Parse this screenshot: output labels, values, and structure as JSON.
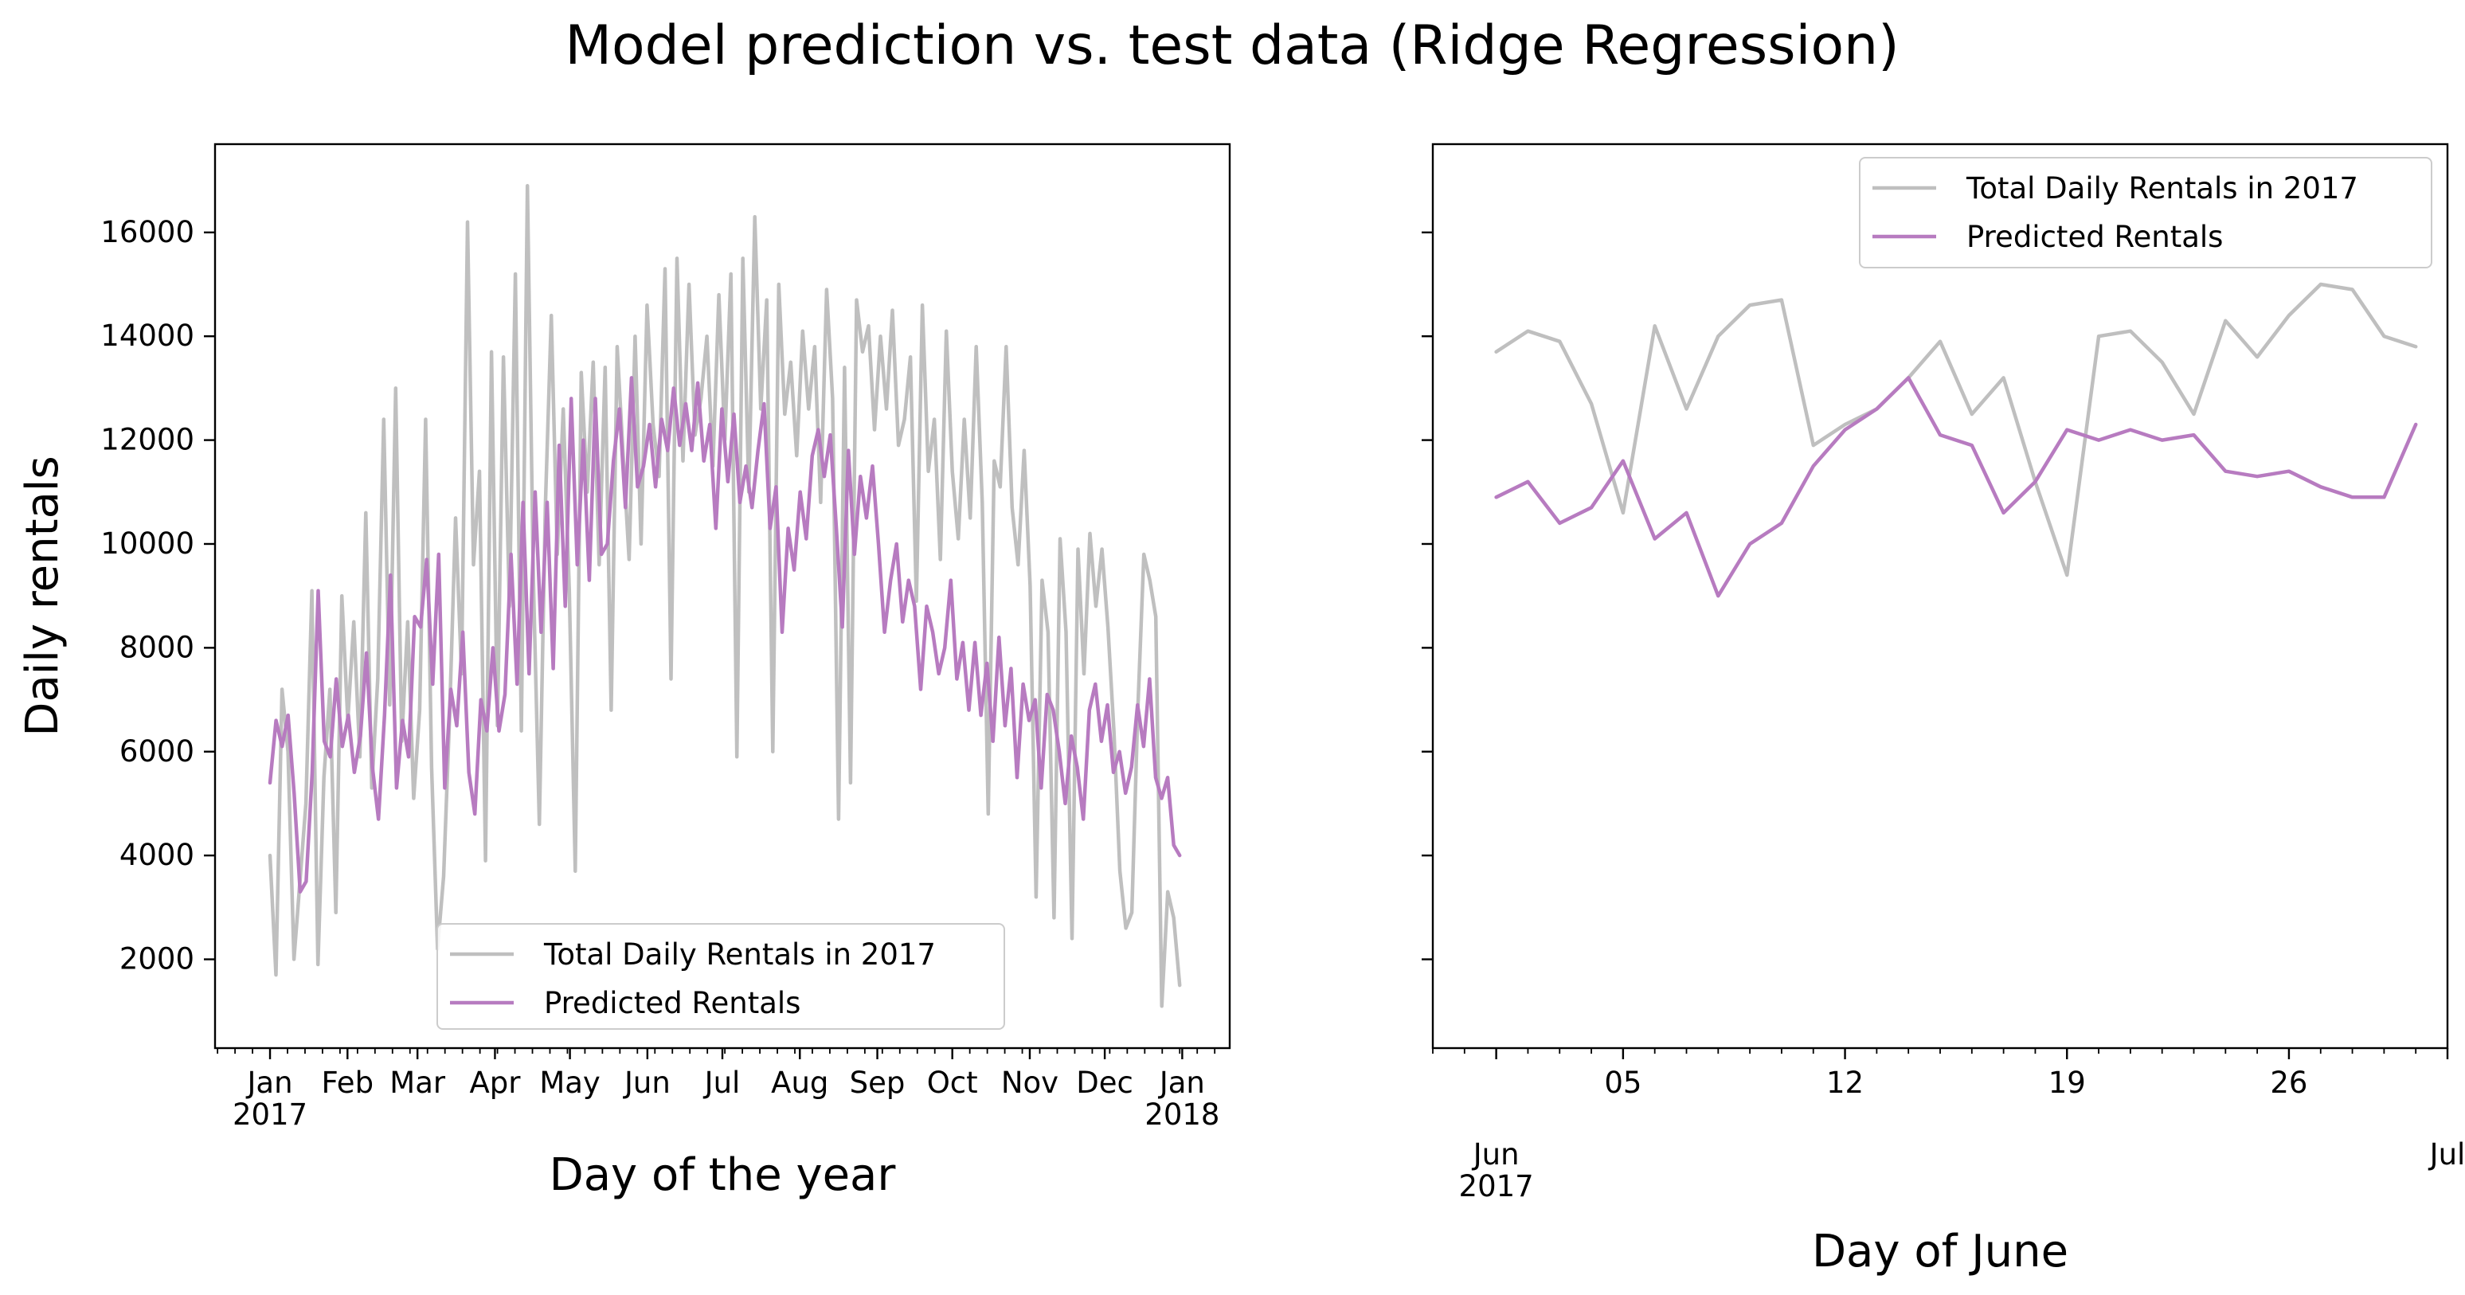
{
  "figure": {
    "suptitle": "Model prediction vs. test data (Ridge Regression)"
  },
  "colors": {
    "actual": "#bfbfbf",
    "predicted": "#b77bc0"
  },
  "chart_data": [
    {
      "type": "line",
      "title": "",
      "xlabel": "Day of the year",
      "ylabel": "Daily rentals",
      "xlim": [
        "2016-12-10",
        "2018-01-20"
      ],
      "ylim": [
        290,
        17700
      ],
      "yticks": [
        2000,
        4000,
        6000,
        8000,
        10000,
        12000,
        14000,
        16000
      ],
      "ytick_labels": [
        "2000",
        "4000",
        "6000",
        "8000",
        "10000",
        "12000",
        "14000",
        "16000"
      ],
      "xticks": [
        {
          "date": "2017-01-01",
          "label": "Jan",
          "sublabel": "2017"
        },
        {
          "date": "2017-02-01",
          "label": "Feb",
          "sublabel": ""
        },
        {
          "date": "2017-03-01",
          "label": "Mar",
          "sublabel": ""
        },
        {
          "date": "2017-04-01",
          "label": "Apr",
          "sublabel": ""
        },
        {
          "date": "2017-05-01",
          "label": "May",
          "sublabel": ""
        },
        {
          "date": "2017-06-01",
          "label": "Jun",
          "sublabel": ""
        },
        {
          "date": "2017-07-01",
          "label": "Jul",
          "sublabel": ""
        },
        {
          "date": "2017-08-01",
          "label": "Aug",
          "sublabel": ""
        },
        {
          "date": "2017-09-01",
          "label": "Sep",
          "sublabel": ""
        },
        {
          "date": "2017-10-01",
          "label": "Oct",
          "sublabel": ""
        },
        {
          "date": "2017-11-01",
          "label": "Nov",
          "sublabel": ""
        },
        {
          "date": "2017-12-01",
          "label": "Dec",
          "sublabel": ""
        },
        {
          "date": "2018-01-01",
          "label": "Jan",
          "sublabel": "2018"
        }
      ],
      "legend": {
        "loc": "lower-center",
        "entries": [
          "Total Daily Rentals in 2017",
          "Predicted Rentals"
        ]
      },
      "grid": false,
      "series": [
        {
          "name": "Total Daily Rentals in 2017",
          "x_start": "2017-01-01",
          "x_end": "2017-12-31",
          "values": [
            4000,
            1700,
            7200,
            6000,
            2000,
            3500,
            5000,
            9100,
            1900,
            5500,
            7200,
            2900,
            9000,
            6600,
            8500,
            5900,
            10600,
            5300,
            7400,
            12400,
            6900,
            13000,
            6200,
            8500,
            5100,
            6800,
            12400,
            5700,
            2200,
            3600,
            6700,
            10500,
            7500,
            16200,
            9600,
            11400,
            3900,
            13700,
            6500,
            13600,
            8800,
            15200,
            6400,
            16900,
            9300,
            4600,
            10700,
            14400,
            9800,
            12600,
            9100,
            3700,
            13300,
            11000,
            13500,
            9600,
            13400,
            6800,
            13800,
            11700,
            9700,
            14000,
            10000,
            14600,
            12300,
            11300,
            15300,
            7400,
            15500,
            11600,
            15000,
            12100,
            12800,
            14000,
            11500,
            14800,
            12000,
            15200,
            5900,
            15500,
            11000,
            16300,
            12600,
            14700,
            6000,
            15000,
            12500,
            13500,
            11700,
            14100,
            12600,
            13800,
            10800,
            14900,
            12800,
            4700,
            13400,
            5400,
            14700,
            13700,
            14200,
            12200,
            14000,
            12600,
            14500,
            11900,
            12400,
            13600,
            8900,
            14600,
            11400,
            12400,
            9700,
            14100,
            11400,
            10100,
            12400,
            10500,
            13800,
            10800,
            4800,
            11600,
            11100,
            13800,
            10700,
            9600,
            11800,
            9200,
            3200,
            9300,
            8300,
            2800,
            10100,
            8300,
            2400,
            9900,
            7500,
            10200,
            8800,
            9900,
            8400,
            6400,
            3700,
            2600,
            2900,
            6800,
            9800,
            9300,
            8600,
            1100,
            3300,
            2800,
            1500
          ],
          "color": "#bfbfbf"
        },
        {
          "name": "Predicted Rentals",
          "x_start": "2017-01-01",
          "x_end": "2017-12-31",
          "values": [
            5400,
            6600,
            6100,
            6700,
            5200,
            3300,
            3500,
            5600,
            9100,
            6200,
            5900,
            7400,
            6100,
            6700,
            5600,
            6300,
            7900,
            5700,
            4700,
            6700,
            9400,
            5300,
            6600,
            5900,
            8600,
            8400,
            9700,
            7300,
            9800,
            5300,
            7200,
            6500,
            8300,
            5600,
            4800,
            7000,
            6400,
            8000,
            6400,
            7100,
            9800,
            7300,
            10800,
            7500,
            11000,
            8300,
            10800,
            7600,
            11900,
            8800,
            12800,
            9600,
            12000,
            9300,
            12800,
            9800,
            10000,
            11600,
            12600,
            10700,
            13200,
            11100,
            11500,
            12300,
            11100,
            12400,
            11800,
            13000,
            11900,
            12700,
            11800,
            13100,
            11600,
            12300,
            10300,
            12600,
            11200,
            12500,
            10800,
            11500,
            10700,
            11800,
            12700,
            10300,
            11100,
            8300,
            10300,
            9500,
            11000,
            10100,
            11700,
            12200,
            11300,
            12100,
            10300,
            8400,
            11800,
            9800,
            11300,
            10500,
            11500,
            10000,
            8300,
            9300,
            10000,
            8500,
            9300,
            8800,
            7200,
            8800,
            8300,
            7500,
            8000,
            9300,
            7400,
            8100,
            6800,
            8100,
            6700,
            7700,
            6200,
            8200,
            6500,
            7600,
            5500,
            7300,
            6600,
            7000,
            5300,
            7100,
            6800,
            6000,
            5000,
            6300,
            5700,
            4700,
            6800,
            7300,
            6200,
            6900,
            5600,
            6000,
            5200,
            5700,
            6900,
            6100,
            7400,
            5500,
            5100,
            5500,
            4200,
            4000
          ],
          "color": "#b77bc0"
        }
      ]
    },
    {
      "type": "line",
      "title": "",
      "xlabel": "Day of June",
      "ylabel": "",
      "xlim": [
        "2017-05-30",
        "2017-07-01"
      ],
      "ylim": [
        290,
        17700
      ],
      "yticks": [
        2000,
        4000,
        6000,
        8000,
        10000,
        12000,
        14000,
        16000
      ],
      "ytick_labels": [],
      "xticks": [
        {
          "date": "2017-06-01",
          "label": "Jun",
          "sublabel": "2017",
          "row": "lower"
        },
        {
          "date": "2017-06-05",
          "label": "05",
          "sublabel": "",
          "row": "upper"
        },
        {
          "date": "2017-06-12",
          "label": "12",
          "sublabel": "",
          "row": "upper"
        },
        {
          "date": "2017-06-19",
          "label": "19",
          "sublabel": "",
          "row": "upper"
        },
        {
          "date": "2017-06-26",
          "label": "26",
          "sublabel": "",
          "row": "upper"
        },
        {
          "date": "2017-07-01",
          "label": "Jul",
          "sublabel": "",
          "row": "lower"
        }
      ],
      "legend": {
        "loc": "upper-right",
        "entries": [
          "Total Daily Rentals in 2017",
          "Predicted Rentals"
        ]
      },
      "grid": false,
      "series": [
        {
          "name": "Total Daily Rentals in 2017",
          "x": [
            1,
            2,
            3,
            4,
            5,
            6,
            7,
            8,
            9,
            10,
            11,
            12,
            13,
            14,
            15,
            16,
            17,
            18,
            19,
            20,
            21,
            22,
            23,
            24,
            25,
            26,
            27,
            28,
            29,
            30
          ],
          "values": [
            13700,
            14100,
            13900,
            12700,
            10600,
            14200,
            12600,
            14000,
            14600,
            14700,
            11900,
            12300,
            12600,
            13200,
            13900,
            12500,
            13200,
            11200,
            9400,
            14000,
            14100,
            13500,
            12500,
            14300,
            13600,
            14400,
            15000,
            14900,
            14000,
            13800
          ],
          "color": "#bfbfbf"
        },
        {
          "name": "Predicted Rentals",
          "x": [
            1,
            2,
            3,
            4,
            5,
            6,
            7,
            8,
            9,
            10,
            11,
            12,
            13,
            14,
            15,
            16,
            17,
            18,
            19,
            20,
            21,
            22,
            23,
            24,
            25,
            26,
            27,
            28,
            29,
            30
          ],
          "values": [
            10900,
            11200,
            10400,
            10700,
            11600,
            10100,
            10600,
            9000,
            10000,
            10400,
            11500,
            12200,
            12600,
            13200,
            12100,
            11900,
            10600,
            11200,
            12200,
            12000,
            12200,
            12000,
            12100,
            11400,
            11300,
            11400,
            11100,
            10900,
            10900,
            12300
          ],
          "color": "#b77bc0"
        }
      ]
    }
  ]
}
